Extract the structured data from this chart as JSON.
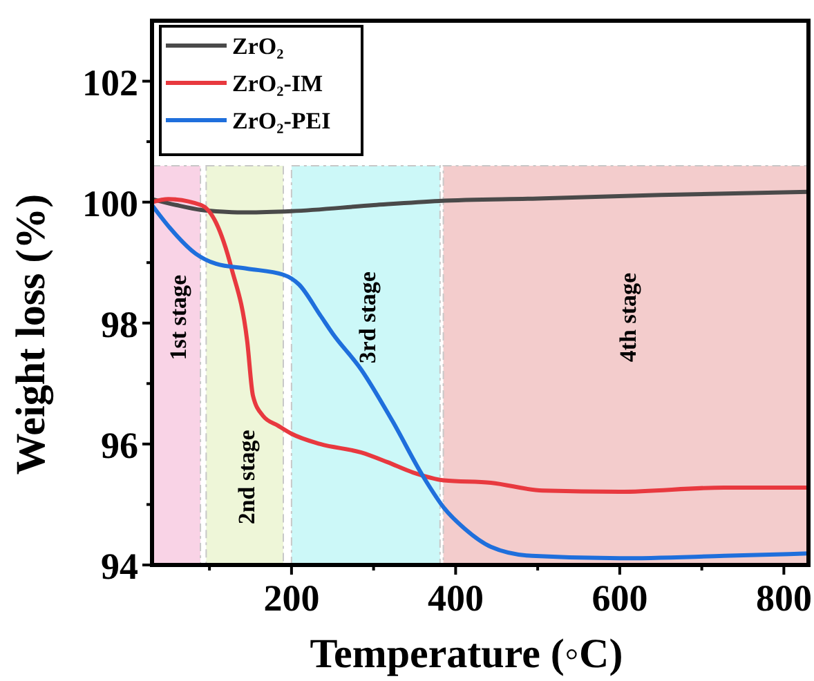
{
  "chart_data": {
    "type": "line",
    "xlabel": "Temperature (◦C)",
    "ylabel": "Weight loss (%)",
    "xlim": [
      30,
      830
    ],
    "ylim": [
      94,
      103
    ],
    "xticks": [
      {
        "value": 100,
        "label": null
      },
      200,
      {
        "value": 300,
        "label": null
      },
      400,
      {
        "value": 500,
        "label": null
      },
      600,
      {
        "value": 700,
        "label": null
      },
      800
    ],
    "yticks": [
      94,
      {
        "value": 95,
        "label": null
      },
      96,
      {
        "value": 97,
        "label": null
      },
      98,
      {
        "value": 99,
        "label": null
      },
      100,
      {
        "value": 101,
        "label": null
      },
      102
    ],
    "legend": "top left",
    "grid": false,
    "bands": [
      {
        "axis": "x",
        "from": 30,
        "to": 89,
        "label": "1st stage",
        "color": "#f9d3e6"
      },
      {
        "axis": "x",
        "from": 96,
        "to": 190,
        "label": "2nd stage",
        "color": "#eef6d8"
      },
      {
        "axis": "x",
        "from": 200,
        "to": 381,
        "label": "3rd stage",
        "color": "#ccf8f8"
      },
      {
        "axis": "x",
        "from": 385,
        "to": 830,
        "label": "4th stage",
        "color": "#f3cccc"
      }
    ],
    "series": [
      {
        "name": "ZrO₂",
        "color": "#4a4a4a",
        "x": [
          30,
          60,
          90,
          120,
          146,
          200,
          300,
          380,
          500,
          650,
          830
        ],
        "values": [
          100.05,
          99.95,
          99.87,
          99.84,
          99.83,
          99.85,
          99.95,
          100.02,
          100.06,
          100.12,
          100.17
        ]
      },
      {
        "name": "ZrO₂-IM",
        "color": "#e8393f",
        "x": [
          30,
          50,
          90,
          108,
          127,
          146,
          153,
          165,
          184,
          200,
          235,
          285,
          317,
          348,
          386,
          443,
          506,
          600,
          727,
          830
        ],
        "values": [
          100.0,
          100.05,
          99.95,
          99.66,
          98.9,
          97.7,
          96.8,
          96.47,
          96.3,
          96.17,
          96.0,
          95.86,
          95.7,
          95.53,
          95.4,
          95.36,
          95.23,
          95.21,
          95.28,
          95.28
        ]
      },
      {
        "name": "ZrO₂-PEI",
        "color": "#1f6fdc",
        "x": [
          30,
          52,
          83,
          108,
          146,
          190,
          209,
          235,
          250,
          285,
          323,
          361,
          386,
          411,
          443,
          493,
          600,
          727,
          830
        ],
        "values": [
          99.95,
          99.57,
          99.15,
          98.98,
          98.9,
          98.8,
          98.64,
          98.13,
          97.83,
          97.23,
          96.38,
          95.45,
          94.94,
          94.6,
          94.3,
          94.15,
          94.11,
          94.15,
          94.19
        ]
      }
    ]
  }
}
